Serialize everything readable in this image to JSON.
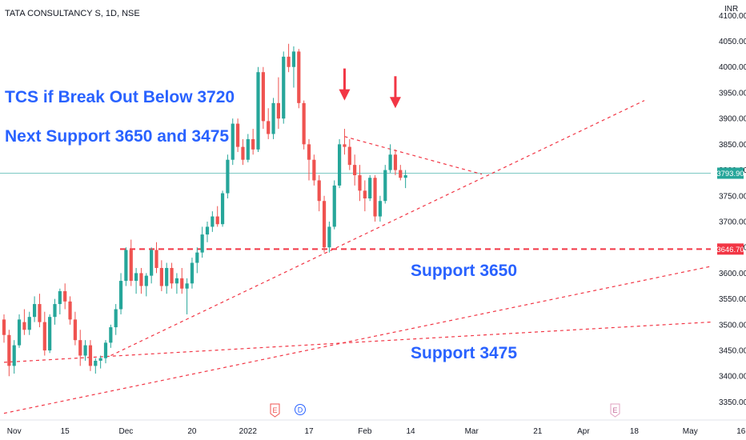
{
  "header": {
    "title": "TATA CONSULTANCY S, 1D, NSE",
    "currency": "INR"
  },
  "colors": {
    "up": "#26a69a",
    "down": "#ef5350",
    "annotation": "#2962ff",
    "trendline": "#f23645",
    "current_line": "#26a69a"
  },
  "chart_data": {
    "type": "candlestick",
    "ylim": [
      3315,
      4130
    ],
    "y_ticks": [
      3350,
      3400,
      3450,
      3500,
      3550,
      3600,
      3650,
      3700,
      3750,
      3800,
      3850,
      3900,
      3950,
      4000,
      4050,
      4100
    ],
    "y_tick_labels": [
      "3350.00",
      "3400.00",
      "3450.00",
      "3500.00",
      "3550.00",
      "3600.00",
      "3650.00",
      "3700.00",
      "3750.00",
      "3800.00",
      "3850.00",
      "3900.00",
      "3950.00",
      "4000.00",
      "4050.00",
      "4100.00"
    ],
    "x_labels": [
      {
        "label": "Nov",
        "i": 2
      },
      {
        "label": "15",
        "i": 12
      },
      {
        "label": "Dec",
        "i": 24
      },
      {
        "label": "20",
        "i": 37
      },
      {
        "label": "2022",
        "i": 48
      },
      {
        "label": "17",
        "i": 60
      },
      {
        "label": "Feb",
        "i": 71
      },
      {
        "label": "14",
        "i": 80
      },
      {
        "label": "Mar",
        "i": 92
      },
      {
        "label": "21",
        "i": 105
      },
      {
        "label": "Apr",
        "i": 114
      },
      {
        "label": "18",
        "i": 124
      },
      {
        "label": "May",
        "i": 135
      },
      {
        "label": "16",
        "i": 145
      }
    ],
    "candles": [
      [
        3510,
        3520,
        3465,
        3480
      ],
      [
        3480,
        3490,
        3400,
        3420
      ],
      [
        3420,
        3470,
        3405,
        3460
      ],
      [
        3460,
        3520,
        3455,
        3510
      ],
      [
        3505,
        3530,
        3480,
        3490
      ],
      [
        3490,
        3525,
        3480,
        3515
      ],
      [
        3515,
        3555,
        3505,
        3540
      ],
      [
        3540,
        3560,
        3495,
        3505
      ],
      [
        3505,
        3525,
        3440,
        3450
      ],
      [
        3450,
        3520,
        3445,
        3515
      ],
      [
        3515,
        3550,
        3500,
        3540
      ],
      [
        3540,
        3570,
        3520,
        3565
      ],
      [
        3565,
        3580,
        3530,
        3545
      ],
      [
        3545,
        3555,
        3500,
        3510
      ],
      [
        3510,
        3525,
        3460,
        3470
      ],
      [
        3470,
        3490,
        3420,
        3440
      ],
      [
        3440,
        3470,
        3430,
        3460
      ],
      [
        3460,
        3470,
        3410,
        3420
      ],
      [
        3420,
        3435,
        3405,
        3430
      ],
      [
        3430,
        3440,
        3415,
        3435
      ],
      [
        3435,
        3470,
        3425,
        3465
      ],
      [
        3465,
        3500,
        3455,
        3495
      ],
      [
        3495,
        3540,
        3480,
        3530
      ],
      [
        3530,
        3600,
        3520,
        3585
      ],
      [
        3585,
        3650,
        3575,
        3645
      ],
      [
        3645,
        3665,
        3575,
        3585
      ],
      [
        3585,
        3610,
        3560,
        3600
      ],
      [
        3600,
        3610,
        3560,
        3575
      ],
      [
        3575,
        3600,
        3555,
        3595
      ],
      [
        3595,
        3650,
        3580,
        3645
      ],
      [
        3645,
        3660,
        3600,
        3610
      ],
      [
        3610,
        3625,
        3565,
        3575
      ],
      [
        3575,
        3620,
        3560,
        3610
      ],
      [
        3610,
        3620,
        3570,
        3580
      ],
      [
        3580,
        3600,
        3560,
        3590
      ],
      [
        3590,
        3610,
        3560,
        3570
      ],
      [
        3570,
        3590,
        3520,
        3580
      ],
      [
        3580,
        3630,
        3570,
        3620
      ],
      [
        3620,
        3650,
        3600,
        3640
      ],
      [
        3640,
        3690,
        3630,
        3675
      ],
      [
        3675,
        3700,
        3660,
        3690
      ],
      [
        3690,
        3720,
        3680,
        3710
      ],
      [
        3710,
        3730,
        3690,
        3695
      ],
      [
        3695,
        3760,
        3690,
        3755
      ],
      [
        3755,
        3830,
        3745,
        3820
      ],
      [
        3820,
        3900,
        3810,
        3890
      ],
      [
        3890,
        3900,
        3835,
        3845
      ],
      [
        3845,
        3860,
        3810,
        3820
      ],
      [
        3820,
        3870,
        3815,
        3860
      ],
      [
        3860,
        3880,
        3830,
        3840
      ],
      [
        3840,
        4000,
        3835,
        3990
      ],
      [
        3990,
        4000,
        3880,
        3895
      ],
      [
        3895,
        3920,
        3860,
        3870
      ],
      [
        3870,
        3940,
        3860,
        3930
      ],
      [
        3930,
        3980,
        3880,
        3900
      ],
      [
        3900,
        4030,
        3890,
        4020
      ],
      [
        4020,
        4045,
        3990,
        4000
      ],
      [
        4000,
        4040,
        3960,
        4030
      ],
      [
        4030,
        4035,
        3920,
        3930
      ],
      [
        3930,
        3935,
        3840,
        3850
      ],
      [
        3850,
        3860,
        3780,
        3820
      ],
      [
        3820,
        3830,
        3770,
        3780
      ],
      [
        3780,
        3790,
        3720,
        3740
      ],
      [
        3740,
        3750,
        3640,
        3650
      ],
      [
        3650,
        3700,
        3640,
        3690
      ],
      [
        3690,
        3780,
        3685,
        3770
      ],
      [
        3770,
        3860,
        3765,
        3850
      ],
      [
        3850,
        3880,
        3830,
        3845
      ],
      [
        3845,
        3860,
        3800,
        3810
      ],
      [
        3810,
        3830,
        3770,
        3790
      ],
      [
        3790,
        3810,
        3740,
        3760
      ],
      [
        3760,
        3780,
        3720,
        3745
      ],
      [
        3745,
        3790,
        3740,
        3785
      ],
      [
        3785,
        3790,
        3700,
        3710
      ],
      [
        3710,
        3750,
        3700,
        3740
      ],
      [
        3740,
        3810,
        3735,
        3800
      ],
      [
        3800,
        3850,
        3795,
        3830
      ],
      [
        3830,
        3840,
        3790,
        3800
      ],
      [
        3800,
        3810,
        3780,
        3785
      ],
      [
        3785,
        3800,
        3765,
        3790
      ]
    ],
    "current_price": 3793.9,
    "current_price_label": "3793.90",
    "support_line_price": 3646.7,
    "support_line_label": "3646.70",
    "annotations": [
      "TCS if Break Out Below 3720",
      "Next Support 3650 and 3475",
      "Support 3650",
      "Support 3475"
    ],
    "event_markers": [
      "E",
      "D",
      "E"
    ]
  }
}
